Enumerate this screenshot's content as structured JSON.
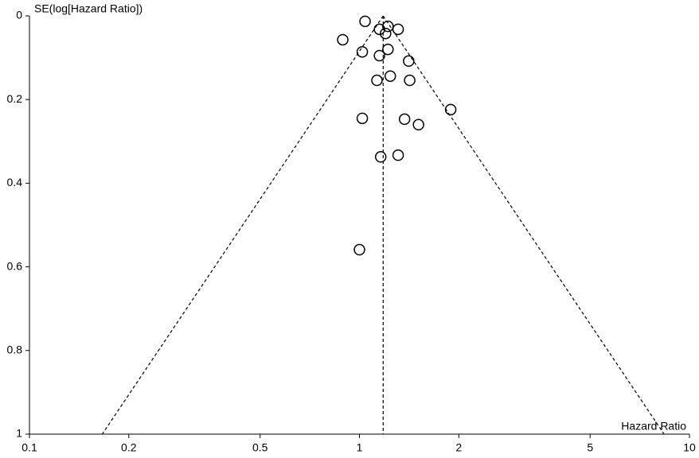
{
  "chart_data": {
    "type": "scatter",
    "title": null,
    "ylabel": "SE(log[Hazard Ratio])",
    "xlabel": "Hazard Ratio",
    "xlog": true,
    "yinverted": true,
    "xlim": [
      0.1,
      10
    ],
    "xticks": [
      0.1,
      0.2,
      0.5,
      1,
      2,
      5,
      10
    ],
    "ylim": [
      0,
      1
    ],
    "yticks": [
      0,
      0.2,
      0.4,
      0.6,
      0.8,
      1
    ],
    "pooled": 1.18,
    "funnel_z": 1.96,
    "x": [
      1.04,
      1.15,
      1.22,
      1.31,
      1.2,
      0.89,
      1.02,
      1.22,
      1.15,
      1.41,
      1.13,
      1.24,
      1.42,
      1.89,
      1.02,
      1.37,
      1.51,
      1.16,
      1.31,
      1.0
    ],
    "values": [
      0.013,
      0.032,
      0.025,
      0.032,
      0.042,
      0.057,
      0.086,
      0.08,
      0.095,
      0.108,
      0.154,
      0.144,
      0.154,
      0.224,
      0.245,
      0.247,
      0.26,
      0.337,
      0.333,
      0.559
    ],
    "color": "#000000"
  }
}
